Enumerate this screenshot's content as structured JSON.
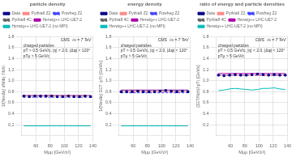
{
  "chart_data": [
    {
      "type": "line",
      "title": "particle density",
      "xlabel": "Mμμ [GeV/c²]",
      "ylabel": "1/(NevΔη) dN/dη ⟨Nch⟩",
      "annotations": [
        "CMS  √s = 7 TeV",
        "charged particles",
        "pT > 0.5 GeV/c, |η| < 2.0, |Δφ| < 120°",
        "pTμ > 5 GeV/c"
      ],
      "xlim": [
        40,
        140
      ],
      "xticks": [
        60,
        80,
        100,
        120,
        140
      ],
      "ylim": [
        0.0,
        1.8
      ],
      "yticks": [
        0.2,
        0.4,
        0.6,
        0.8,
        {
          "value": 1.0,
          "label": "1.0"
        },
        1.2,
        1.4,
        1.6,
        1.8
      ],
      "grid": true,
      "legend": "upper left",
      "x": [
        43,
        50.833333333333336,
        58.666666666666664,
        66.5,
        74.33333333333333,
        82.16666666666667,
        90,
        97.83333333333333,
        105.66666666666667,
        113.5,
        121.33333333333333,
        129.16666666666666,
        137
      ],
      "series": [
        {
          "name": "Data",
          "type": "scatter",
          "marker": "square",
          "color": "#000088",
          "values": [
            0.72,
            0.71,
            0.72,
            0.72,
            0.72,
            0.72,
            0.71,
            0.71,
            0.72,
            0.71,
            0.71,
            0.72,
            0.71
          ],
          "errors": [
            0.014,
            0.014,
            0.014,
            0.014,
            0.014,
            0.014,
            0.014,
            0.014,
            0.014,
            0.014,
            0.014,
            0.014,
            0.014
          ]
        },
        {
          "name": "Pythia6 Z2",
          "type": "line",
          "line_style": "solid",
          "color": "#FF8888",
          "values": [
            0.72,
            0.72,
            0.72,
            0.72,
            0.72,
            0.72,
            0.72,
            0.72,
            0.72,
            0.72,
            0.72,
            0.72,
            0.72
          ]
        },
        {
          "name": "Powheg Z2",
          "type": "line",
          "line_style": "dashed",
          "color": "#4444FF",
          "values": [
            0.7,
            0.7,
            0.7,
            0.7,
            0.7,
            0.7,
            0.7,
            0.7,
            0.7,
            0.7,
            0.7,
            0.7,
            0.7
          ]
        },
        {
          "name": "Pythia8 4C",
          "type": "line",
          "line_style": "dashed",
          "color": "#666666",
          "values": [
            0.73,
            0.73,
            0.73,
            0.73,
            0.73,
            0.73,
            0.73,
            0.73,
            0.73,
            0.73,
            0.73,
            0.73,
            0.73
          ]
        },
        {
          "name": "Herwig++ LHC-UE7-2",
          "type": "line",
          "line_style": "solid",
          "color": "#AA00AA",
          "values": [
            0.73,
            0.73,
            0.73,
            0.73,
            0.73,
            0.73,
            0.73,
            0.73,
            0.73,
            0.73,
            0.73,
            0.73,
            0.73
          ]
        },
        {
          "name": "Herwig++ LHC-UE7-2 (no MPI)",
          "type": "line",
          "line_style": "solid",
          "color": "#00BBBB",
          "values": [
            0.18,
            0.18,
            0.18,
            0.18,
            0.18,
            0.18,
            0.18,
            0.18,
            0.18,
            0.18,
            0.18,
            0.18,
            0.18
          ]
        }
      ]
    },
    {
      "type": "line",
      "title": "energy density",
      "xlabel": "Mμμ [GeV/c²]",
      "ylabel": "1/(NevΔη) ΣET ⟨pT⟩ [GeV/c]",
      "annotations": [
        "CMS  √s = 7 TeV",
        "charged particles",
        "pT > 0.5 GeV/c, |η| < 2.0, |Δφ| < 120°",
        "pTμ > 5 GeV/c"
      ],
      "xlim": [
        40,
        140
      ],
      "xticks": [
        60,
        80,
        100,
        120,
        140
      ],
      "ylim": [
        0.0,
        1.8
      ],
      "yticks": [
        0.2,
        0.4,
        0.6,
        0.8,
        {
          "value": 1.0,
          "label": "1.0"
        },
        1.2,
        1.4,
        1.6,
        1.8
      ],
      "grid": true,
      "legend": "upper left",
      "x": [
        43,
        50.833333333333336,
        58.666666666666664,
        66.5,
        74.33333333333333,
        82.16666666666667,
        90,
        97.83333333333333,
        105.66666666666667,
        113.5,
        121.33333333333333,
        129.16666666666666,
        137
      ],
      "series": [
        {
          "name": "Data",
          "type": "scatter",
          "marker": "square",
          "color": "#000088",
          "values": [
            0.8,
            0.8,
            0.8,
            0.81,
            0.8,
            0.8,
            0.8,
            0.81,
            0.82,
            0.81,
            0.8,
            0.81,
            0.8
          ],
          "errors": [
            0.014,
            0.014,
            0.014,
            0.014,
            0.014,
            0.014,
            0.014,
            0.014,
            0.014,
            0.014,
            0.014,
            0.014,
            0.014
          ]
        },
        {
          "name": "Pythia6 Z2",
          "type": "line",
          "line_style": "solid",
          "color": "#FF8888",
          "values": [
            0.8,
            0.8,
            0.8,
            0.8,
            0.8,
            0.8,
            0.8,
            0.8,
            0.8,
            0.8,
            0.8,
            0.8,
            0.8
          ]
        },
        {
          "name": "Powheg Z2",
          "type": "line",
          "line_style": "dashed",
          "color": "#4444FF",
          "values": [
            0.78,
            0.78,
            0.78,
            0.78,
            0.78,
            0.78,
            0.78,
            0.78,
            0.78,
            0.78,
            0.78,
            0.78,
            0.78
          ]
        },
        {
          "name": "Pythia8 4C",
          "type": "line",
          "line_style": "dashed",
          "color": "#666666",
          "values": [
            0.82,
            0.82,
            0.82,
            0.82,
            0.82,
            0.82,
            0.82,
            0.82,
            0.82,
            0.82,
            0.82,
            0.82,
            0.82
          ]
        },
        {
          "name": "Herwig++ LHC-UE7-2",
          "type": "line",
          "line_style": "solid",
          "color": "#AA00AA",
          "values": [
            0.83,
            0.83,
            0.83,
            0.83,
            0.83,
            0.83,
            0.83,
            0.83,
            0.83,
            0.83,
            0.83,
            0.83,
            0.83
          ]
        },
        {
          "name": "Herwig++ LHC-UE7-2 (no MPI)",
          "type": "line",
          "line_style": "solid",
          "color": "#00BBBB",
          "values": [
            0.18,
            0.18,
            0.18,
            0.18,
            0.18,
            0.18,
            0.18,
            0.18,
            0.18,
            0.18,
            0.18,
            0.18,
            0.18
          ]
        }
      ]
    },
    {
      "type": "line",
      "title": "ratio of energy and particle densities",
      "xlabel": "Mμμ [GeV/c²]",
      "ylabel": "(ΣET/Nch)/⟨pT⟩ [GeV/c]",
      "annotations": [
        "CMS  √s = 7 TeV",
        "charged particles",
        "pT > 0.5 GeV/c, |η| < 2.0, |Δφ| < 120°",
        "pTμ > 5 GeV/c"
      ],
      "xlim": [
        40,
        140
      ],
      "xticks": [
        60,
        80,
        100,
        120,
        140
      ],
      "ylim": [
        0.0,
        1.8
      ],
      "yticks": [
        0.2,
        0.4,
        0.6,
        0.8,
        {
          "value": 1.0,
          "label": "1.0"
        },
        1.2,
        1.4,
        1.6,
        1.8
      ],
      "grid": true,
      "legend": "upper left",
      "x": [
        43,
        50.833333333333336,
        58.666666666666664,
        66.5,
        74.33333333333333,
        82.16666666666667,
        90,
        97.83333333333333,
        105.66666666666667,
        113.5,
        121.33333333333333,
        129.16666666666666,
        137
      ],
      "series": [
        {
          "name": "Data",
          "type": "scatter",
          "marker": "square",
          "color": "#000088",
          "values": [
            1.1,
            1.09,
            1.1,
            1.11,
            1.1,
            1.1,
            1.11,
            1.12,
            1.11,
            1.1,
            1.11,
            1.1,
            1.1
          ],
          "errors": [
            0.014,
            0.014,
            0.014,
            0.014,
            0.014,
            0.014,
            0.014,
            0.014,
            0.014,
            0.014,
            0.014,
            0.014,
            0.014
          ]
        },
        {
          "name": "Pythia6 Z2",
          "type": "line",
          "line_style": "solid",
          "color": "#FF8888",
          "values": [
            1.1,
            1.1,
            1.1,
            1.1,
            1.1,
            1.1,
            1.1,
            1.1,
            1.1,
            1.1,
            1.1,
            1.1,
            1.1
          ]
        },
        {
          "name": "Powheg Z2",
          "type": "line",
          "line_style": "dashed",
          "color": "#4444FF",
          "values": [
            1.1,
            1.1,
            1.1,
            1.1,
            1.1,
            1.1,
            1.1,
            1.1,
            1.1,
            1.1,
            1.1,
            1.1,
            1.1
          ]
        },
        {
          "name": "Pythia8 4C",
          "type": "line",
          "line_style": "dashed",
          "color": "#666666",
          "values": [
            1.1,
            1.1,
            1.1,
            1.1,
            1.1,
            1.1,
            1.1,
            1.1,
            1.1,
            1.1,
            1.1,
            1.1,
            1.1
          ]
        },
        {
          "name": "Herwig++ LHC-UE7-2",
          "type": "line",
          "line_style": "solid",
          "color": "#AA00AA",
          "values": [
            1.13,
            1.13,
            1.13,
            1.13,
            1.13,
            1.13,
            1.13,
            1.13,
            1.13,
            1.13,
            1.13,
            1.13,
            1.13
          ]
        },
        {
          "name": "Herwig++ LHC-UE7-2 (no MPI)",
          "type": "line",
          "line_style": "solid",
          "color": "#00BBBB",
          "values": [
            0.82,
            0.83,
            0.85,
            0.86,
            0.85,
            0.84,
            0.83,
            0.84,
            0.86,
            0.86,
            0.87,
            0.85,
            0.84
          ]
        }
      ]
    }
  ]
}
